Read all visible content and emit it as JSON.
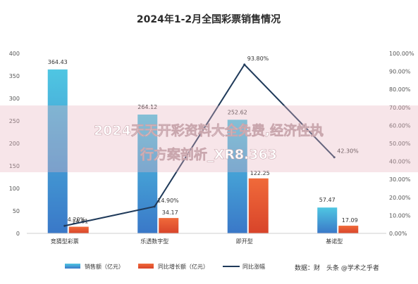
{
  "chart_data": {
    "type": "bar",
    "title": "2024年1-2月全国彩票销售情况",
    "categories": [
      "竞猜型彩票",
      "乐透数字型",
      "即开型",
      "基诺型"
    ],
    "series": [
      {
        "name": "销售额（亿元）",
        "type": "bar",
        "axis": "left",
        "color": "#3fb8d8",
        "values": [
          364.43,
          264.12,
          252.62,
          57.47
        ]
      },
      {
        "name": "同比增长额（亿元）",
        "type": "bar",
        "axis": "left",
        "color": "#e8603a",
        "values": [
          14.81,
          34.17,
          122.25,
          17.09
        ]
      },
      {
        "name": "同比涨幅",
        "type": "line",
        "axis": "right",
        "color": "#1f3a5a",
        "values": [
          4.2,
          14.9,
          93.8,
          42.3
        ]
      }
    ],
    "data_labels": {
      "sales": [
        "364.43",
        "264.12",
        "252.62",
        "57.47"
      ],
      "growth": [
        "14.81",
        "34.17",
        "122.25",
        "17.09"
      ],
      "pct": [
        "4.20%",
        "14.90%",
        "93.80%",
        "42.30%"
      ]
    },
    "left_axis": {
      "min": 0,
      "max": 400,
      "ticks": [
        "0",
        "50",
        "100",
        "150",
        "200",
        "250",
        "300",
        "350",
        "400"
      ]
    },
    "right_axis": {
      "min": 0,
      "max": 100,
      "ticks": [
        "0.00%",
        "10.00%",
        "20.00%",
        "30.00%",
        "40.00%",
        "50.00%",
        "60.00%",
        "70.00%",
        "80.00%",
        "90.00%",
        "100.00%"
      ]
    },
    "legend_position": "bottom",
    "grid": false
  },
  "overlay": {
    "line1": "2024天天开彩资料大全免费,经济性执",
    "line2": "行方案剖析_XR8.363"
  },
  "footer": {
    "source": "数据：财",
    "watermark": "头条 @学术之乎者"
  }
}
